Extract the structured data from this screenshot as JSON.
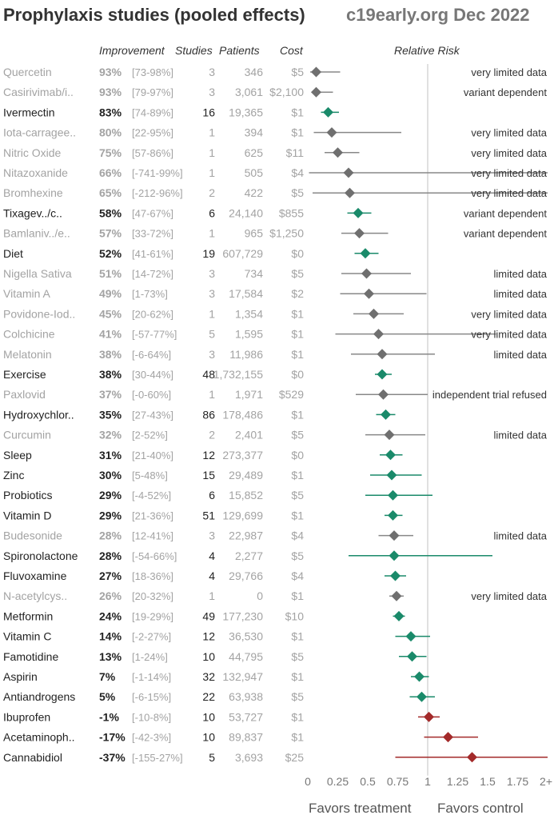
{
  "title": "Prophylaxis studies (pooled effects)",
  "subtitle": "c19early.org Dec 2022",
  "headers": {
    "improvement": "Improvement",
    "studies": "Studies",
    "patients": "Patients",
    "cost": "Cost",
    "relative_risk": "Relative Risk"
  },
  "footer": {
    "favors_treatment": "Favors treatment",
    "favors_control": "Favors control"
  },
  "colors": {
    "strong_text": "#222222",
    "weak_text": "#a3a3a3",
    "green": "#1a8a6a",
    "gray": "#6f6f6f",
    "red": "#a32a2a",
    "ci_gray": "#888888",
    "refline": "#cccccc"
  },
  "chart_data": {
    "type": "forest",
    "x_axis": {
      "min": 0,
      "max": 2,
      "ticks": [
        0,
        0.25,
        0.5,
        0.75,
        1,
        1.25,
        1.5,
        1.75,
        2
      ],
      "tick_labels": [
        "0",
        "0.25",
        "0.5",
        "0.75",
        "1",
        "1.25",
        "1.5",
        "1.75",
        "2+"
      ],
      "reference": 1
    },
    "rows": [
      {
        "name": "Quercetin",
        "improvement": "93%",
        "ci": "[73-98%]",
        "studies": "3",
        "patients": "346",
        "cost": "$5",
        "rr": 0.07,
        "lo": 0.02,
        "hi": 0.27,
        "color": "gray",
        "emph": false,
        "note": "very limited data"
      },
      {
        "name": "Casirivimab/i..",
        "improvement": "93%",
        "ci": "[79-97%]",
        "studies": "3",
        "patients": "3,061",
        "cost": "$2,100",
        "rr": 0.07,
        "lo": 0.03,
        "hi": 0.21,
        "color": "gray",
        "emph": false,
        "note": "variant dependent"
      },
      {
        "name": "Ivermectin",
        "improvement": "83%",
        "ci": "[74-89%]",
        "studies": "16",
        "patients": "19,365",
        "cost": "$1",
        "rr": 0.17,
        "lo": 0.11,
        "hi": 0.26,
        "color": "green",
        "emph": true,
        "note": ""
      },
      {
        "name": "Iota-carragee..",
        "improvement": "80%",
        "ci": "[22-95%]",
        "studies": "1",
        "patients": "394",
        "cost": "$1",
        "rr": 0.2,
        "lo": 0.05,
        "hi": 0.78,
        "color": "gray",
        "emph": false,
        "note": "very limited data"
      },
      {
        "name": "Nitric Oxide",
        "improvement": "75%",
        "ci": "[57-86%]",
        "studies": "1",
        "patients": "625",
        "cost": "$11",
        "rr": 0.25,
        "lo": 0.14,
        "hi": 0.43,
        "color": "gray",
        "emph": false,
        "note": "very limited data"
      },
      {
        "name": "Nitazoxanide",
        "improvement": "66%",
        "ci": "[-741-99%]",
        "studies": "1",
        "patients": "505",
        "cost": "$4",
        "rr": 0.34,
        "lo": 0.01,
        "hi": 8.41,
        "color": "gray",
        "emph": false,
        "note": "very limited data"
      },
      {
        "name": "Bromhexine",
        "improvement": "65%",
        "ci": "[-212-96%]",
        "studies": "2",
        "patients": "422",
        "cost": "$5",
        "rr": 0.35,
        "lo": 0.04,
        "hi": 3.12,
        "color": "gray",
        "emph": false,
        "note": "very limited data"
      },
      {
        "name": "Tixagev../c..",
        "improvement": "58%",
        "ci": "[47-67%]",
        "studies": "6",
        "patients": "24,140",
        "cost": "$855",
        "rr": 0.42,
        "lo": 0.33,
        "hi": 0.53,
        "color": "green",
        "emph": true,
        "note": "variant dependent"
      },
      {
        "name": "Bamlaniv../e..",
        "improvement": "57%",
        "ci": "[33-72%]",
        "studies": "1",
        "patients": "965",
        "cost": "$1,250",
        "rr": 0.43,
        "lo": 0.28,
        "hi": 0.67,
        "color": "gray",
        "emph": false,
        "note": "variant dependent"
      },
      {
        "name": "Diet",
        "improvement": "52%",
        "ci": "[41-61%]",
        "studies": "19",
        "patients": "607,729",
        "cost": "$0",
        "rr": 0.48,
        "lo": 0.39,
        "hi": 0.59,
        "color": "green",
        "emph": true,
        "note": ""
      },
      {
        "name": "Nigella Sativa",
        "improvement": "51%",
        "ci": "[14-72%]",
        "studies": "3",
        "patients": "734",
        "cost": "$5",
        "rr": 0.49,
        "lo": 0.28,
        "hi": 0.86,
        "color": "gray",
        "emph": false,
        "note": "limited data"
      },
      {
        "name": "Vitamin A",
        "improvement": "49%",
        "ci": "[1-73%]",
        "studies": "3",
        "patients": "17,584",
        "cost": "$2",
        "rr": 0.51,
        "lo": 0.27,
        "hi": 0.99,
        "color": "gray",
        "emph": false,
        "note": "limited data"
      },
      {
        "name": "Povidone-Iod..",
        "improvement": "45%",
        "ci": "[20-62%]",
        "studies": "1",
        "patients": "1,354",
        "cost": "$1",
        "rr": 0.55,
        "lo": 0.38,
        "hi": 0.8,
        "color": "gray",
        "emph": false,
        "note": "very limited data"
      },
      {
        "name": "Colchicine",
        "improvement": "41%",
        "ci": "[-57-77%]",
        "studies": "5",
        "patients": "1,595",
        "cost": "$1",
        "rr": 0.59,
        "lo": 0.23,
        "hi": 1.57,
        "color": "gray",
        "emph": false,
        "note": "very limited data"
      },
      {
        "name": "Melatonin",
        "improvement": "38%",
        "ci": "[-6-64%]",
        "studies": "3",
        "patients": "11,986",
        "cost": "$1",
        "rr": 0.62,
        "lo": 0.36,
        "hi": 1.06,
        "color": "gray",
        "emph": false,
        "note": "limited data"
      },
      {
        "name": "Exercise",
        "improvement": "38%",
        "ci": "[30-44%]",
        "studies": "48",
        "patients": "1,732,155",
        "cost": "$0",
        "rr": 0.62,
        "lo": 0.56,
        "hi": 0.7,
        "color": "green",
        "emph": true,
        "note": ""
      },
      {
        "name": "Paxlovid",
        "improvement": "37%",
        "ci": "[-0-60%]",
        "studies": "1",
        "patients": "1,971",
        "cost": "$529",
        "rr": 0.63,
        "lo": 0.4,
        "hi": 1.0,
        "color": "gray",
        "emph": false,
        "note": "independent trial refused"
      },
      {
        "name": "Hydroxychlor..",
        "improvement": "35%",
        "ci": "[27-43%]",
        "studies": "86",
        "patients": "178,486",
        "cost": "$1",
        "rr": 0.65,
        "lo": 0.57,
        "hi": 0.73,
        "color": "green",
        "emph": true,
        "note": ""
      },
      {
        "name": "Curcumin",
        "improvement": "32%",
        "ci": "[2-52%]",
        "studies": "2",
        "patients": "2,401",
        "cost": "$5",
        "rr": 0.68,
        "lo": 0.48,
        "hi": 0.98,
        "color": "gray",
        "emph": false,
        "note": "limited data"
      },
      {
        "name": "Sleep",
        "improvement": "31%",
        "ci": "[21-40%]",
        "studies": "12",
        "patients": "273,377",
        "cost": "$0",
        "rr": 0.69,
        "lo": 0.6,
        "hi": 0.79,
        "color": "green",
        "emph": true,
        "note": ""
      },
      {
        "name": "Zinc",
        "improvement": "30%",
        "ci": "[5-48%]",
        "studies": "15",
        "patients": "29,489",
        "cost": "$1",
        "rr": 0.7,
        "lo": 0.52,
        "hi": 0.95,
        "color": "green",
        "emph": true,
        "note": ""
      },
      {
        "name": "Probiotics",
        "improvement": "29%",
        "ci": "[-4-52%]",
        "studies": "6",
        "patients": "15,852",
        "cost": "$5",
        "rr": 0.71,
        "lo": 0.48,
        "hi": 1.04,
        "color": "green",
        "emph": true,
        "note": ""
      },
      {
        "name": "Vitamin D",
        "improvement": "29%",
        "ci": "[21-36%]",
        "studies": "51",
        "patients": "129,699",
        "cost": "$1",
        "rr": 0.71,
        "lo": 0.64,
        "hi": 0.79,
        "color": "green",
        "emph": true,
        "note": ""
      },
      {
        "name": "Budesonide",
        "improvement": "28%",
        "ci": "[12-41%]",
        "studies": "3",
        "patients": "22,987",
        "cost": "$4",
        "rr": 0.72,
        "lo": 0.59,
        "hi": 0.88,
        "color": "gray",
        "emph": false,
        "note": "limited data"
      },
      {
        "name": "Spironolactone",
        "improvement": "28%",
        "ci": "[-54-66%]",
        "studies": "4",
        "patients": "2,277",
        "cost": "$5",
        "rr": 0.72,
        "lo": 0.34,
        "hi": 1.54,
        "color": "green",
        "emph": true,
        "note": ""
      },
      {
        "name": "Fluvoxamine",
        "improvement": "27%",
        "ci": "[18-36%]",
        "studies": "4",
        "patients": "29,766",
        "cost": "$4",
        "rr": 0.73,
        "lo": 0.64,
        "hi": 0.82,
        "color": "green",
        "emph": true,
        "note": ""
      },
      {
        "name": "N-acetylcys..",
        "improvement": "26%",
        "ci": "[20-32%]",
        "studies": "1",
        "patients": "0",
        "cost": "$1",
        "rr": 0.74,
        "lo": 0.68,
        "hi": 0.8,
        "color": "gray",
        "emph": false,
        "note": "very limited data"
      },
      {
        "name": "Metformin",
        "improvement": "24%",
        "ci": "[19-29%]",
        "studies": "49",
        "patients": "177,230",
        "cost": "$10",
        "rr": 0.76,
        "lo": 0.71,
        "hi": 0.81,
        "color": "green",
        "emph": true,
        "note": ""
      },
      {
        "name": "Vitamin C",
        "improvement": "14%",
        "ci": "[-2-27%]",
        "studies": "12",
        "patients": "36,530",
        "cost": "$1",
        "rr": 0.86,
        "lo": 0.73,
        "hi": 1.02,
        "color": "green",
        "emph": true,
        "note": ""
      },
      {
        "name": "Famotidine",
        "improvement": "13%",
        "ci": "[1-24%]",
        "studies": "10",
        "patients": "44,795",
        "cost": "$5",
        "rr": 0.87,
        "lo": 0.76,
        "hi": 0.99,
        "color": "green",
        "emph": true,
        "note": ""
      },
      {
        "name": "Aspirin",
        "improvement": "7%",
        "ci": "[-1-14%]",
        "studies": "32",
        "patients": "132,947",
        "cost": "$1",
        "rr": 0.93,
        "lo": 0.86,
        "hi": 1.01,
        "color": "green",
        "emph": true,
        "note": ""
      },
      {
        "name": "Antiandrogens",
        "improvement": "5%",
        "ci": "[-6-15%]",
        "studies": "22",
        "patients": "63,938",
        "cost": "$5",
        "rr": 0.95,
        "lo": 0.85,
        "hi": 1.06,
        "color": "green",
        "emph": true,
        "note": ""
      },
      {
        "name": "Ibuprofen",
        "improvement": "-1%",
        "ci": "[-10-8%]",
        "studies": "10",
        "patients": "53,727",
        "cost": "$1",
        "rr": 1.01,
        "lo": 0.92,
        "hi": 1.1,
        "color": "red",
        "emph": true,
        "note": ""
      },
      {
        "name": "Acetaminoph..",
        "improvement": "-17%",
        "ci": "[-42-3%]",
        "studies": "10",
        "patients": "89,837",
        "cost": "$1",
        "rr": 1.17,
        "lo": 0.97,
        "hi": 1.42,
        "color": "red",
        "emph": true,
        "note": ""
      },
      {
        "name": "Cannabidiol",
        "improvement": "-37%",
        "ci": "[-155-27%]",
        "studies": "5",
        "patients": "3,693",
        "cost": "$25",
        "rr": 1.37,
        "lo": 0.73,
        "hi": 2.55,
        "color": "red",
        "emph": true,
        "note": ""
      }
    ]
  }
}
